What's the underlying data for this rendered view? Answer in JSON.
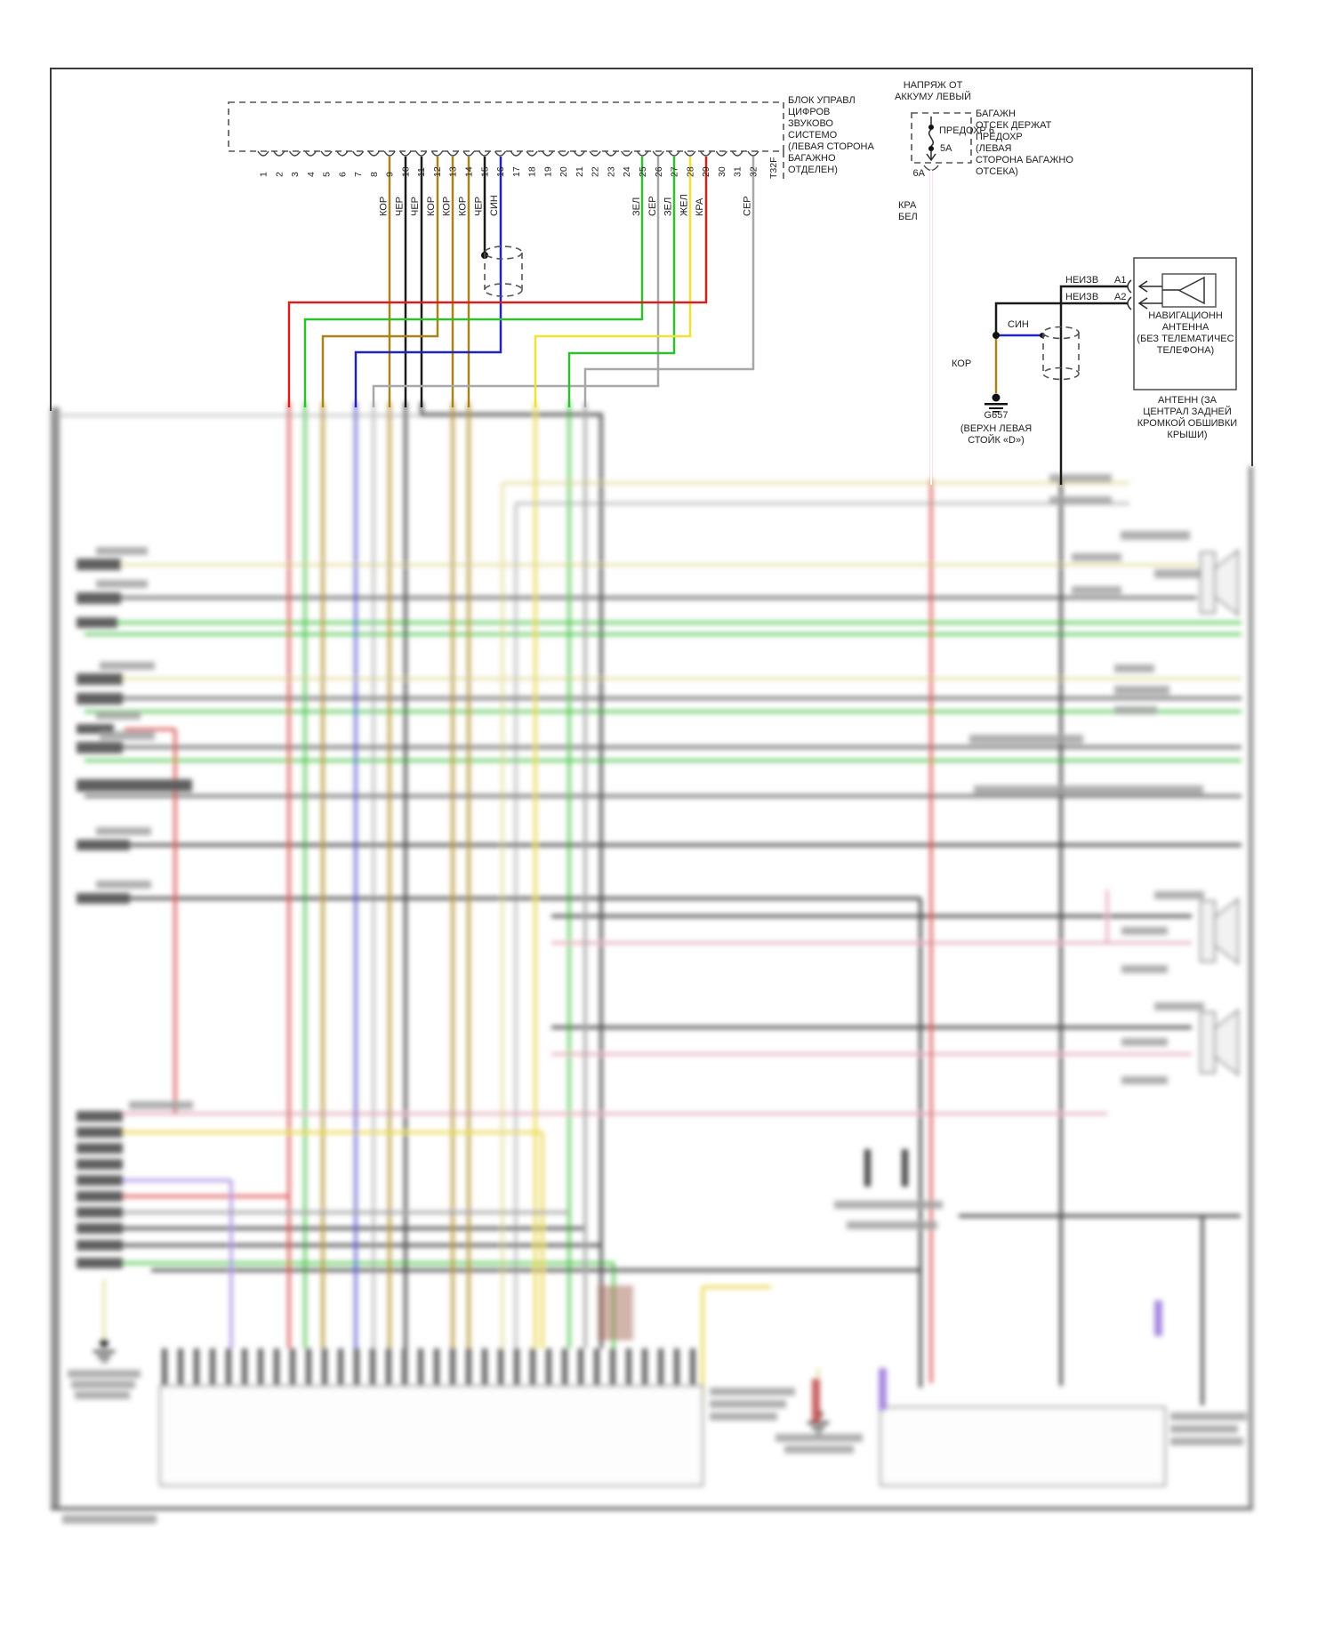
{
  "diagram": {
    "control_unit": {
      "label": "БЛОК УПРАВЛ\nЦИФРОВ\nЗВУКОВО\nСИСТЕМО\n(ЛЕВАЯ СТОРОНА\nБАГАЖНО\nОТДЕЛЕН)",
      "connector_id": "T32F",
      "pins": [
        {
          "num": "1"
        },
        {
          "num": "2"
        },
        {
          "num": "3"
        },
        {
          "num": "4"
        },
        {
          "num": "5"
        },
        {
          "num": "6"
        },
        {
          "num": "7"
        },
        {
          "num": "8"
        },
        {
          "num": "9",
          "wire": "КОР"
        },
        {
          "num": "10",
          "wire": "ЧЕР"
        },
        {
          "num": "11",
          "wire": "ЧЕР"
        },
        {
          "num": "12",
          "wire": "КОР"
        },
        {
          "num": "13",
          "wire": "КОР"
        },
        {
          "num": "14",
          "wire": "КОР"
        },
        {
          "num": "15",
          "wire": "ЧЕР"
        },
        {
          "num": "16",
          "wire": "СИН"
        },
        {
          "num": "17"
        },
        {
          "num": "18"
        },
        {
          "num": "19"
        },
        {
          "num": "20"
        },
        {
          "num": "21"
        },
        {
          "num": "22"
        },
        {
          "num": "23"
        },
        {
          "num": "24"
        },
        {
          "num": "25",
          "wire": "ЗЕЛ"
        },
        {
          "num": "26",
          "wire": "СЕР"
        },
        {
          "num": "27",
          "wire": "ЗЕЛ"
        },
        {
          "num": "28",
          "wire": "ЖЕЛ"
        },
        {
          "num": "29",
          "wire": "КРА"
        },
        {
          "num": "30"
        },
        {
          "num": "31"
        },
        {
          "num": "32",
          "wire": "СЕР"
        }
      ]
    },
    "power_feed": {
      "source_label": "НАПРЯЖ ОТ\nАККУМУ ЛЕВЫЙ",
      "fuse_name": "ПРЕДОХР 6",
      "fuse_rating": "5А",
      "holder_label": "БАГАЖН\nОТСЕК ДЕРЖАТ\nПРЕДОХР\n(ЛЕВАЯ\nСТОРОНА БАГАЖНО\nОТСЕКА)",
      "terminal": "6А",
      "wire_colors": "КРА\nБЕЛ"
    },
    "nav_antenna": {
      "pins": [
        {
          "wire": "НЕИЗВ",
          "pin": "А1"
        },
        {
          "wire": "НЕИЗВ",
          "pin": "А2"
        }
      ],
      "unit_label": "НАВИГАЦИОНН\nАНТЕННА\n(БЕЗ ТЕЛЕМАТИЧЕС\nТЕЛЕФОНА)",
      "location_label": "АНТЕНН (ЗА\nЦЕНТРАЛ ЗАДНЕЙ\nКРОМКОЙ ОБШИВКИ\nКРЫШИ)",
      "shield_jumper_wire": "СИН",
      "ground_wire": "КОР",
      "ground_id": "G657",
      "ground_location": "(ВЕРХН ЛЕВАЯ\nСТОЙК «D»)"
    },
    "colors": {
      "kor": "#a9841c",
      "cher": "#1a1a1a",
      "sin": "#2024b8",
      "zel": "#2fbf2f",
      "ser": "#a8a8a8",
      "zhel": "#f0e135",
      "kra": "#d62020"
    }
  }
}
